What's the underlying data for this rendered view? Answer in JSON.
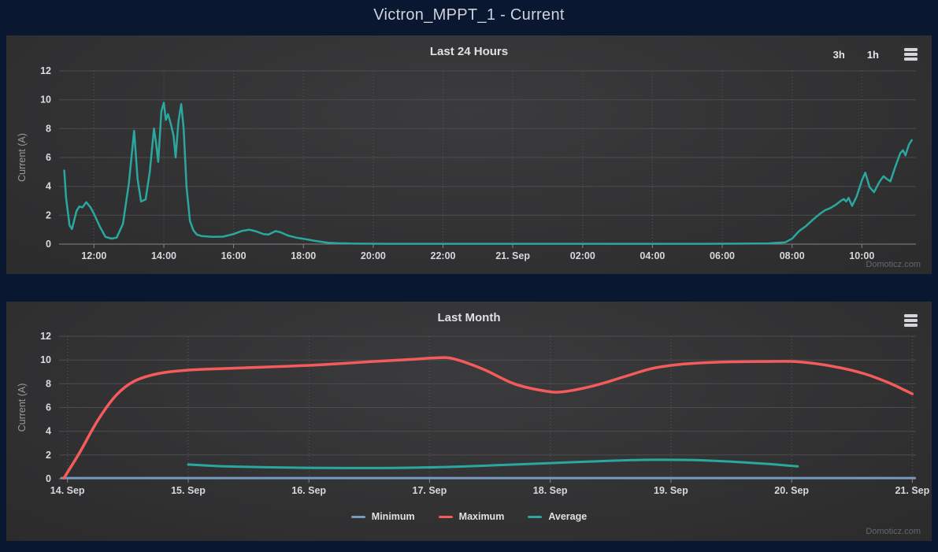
{
  "page": {
    "title": "Victron_MPPT_1 - Current",
    "watermark": "Domoticz.com"
  },
  "colors": {
    "page_bg": "#0a1731",
    "panel_center": "#3b3b3d",
    "panel_edge": "#2b2b2c",
    "grid": "#4d4d50",
    "minor_grid": "#58585c",
    "axis": "#85858a",
    "text": "#e0e0e3",
    "muted_text": "#9a9aa0",
    "teal": "#2aa79e",
    "red": "#f45b5b",
    "blue": "#7798bf"
  },
  "chart_data": [
    {
      "type": "line",
      "title": "Last 24 Hours",
      "ylabel": "Current (A)",
      "ylim": [
        0,
        12
      ],
      "yticks": [
        0,
        2,
        4,
        6,
        8,
        10,
        12
      ],
      "xlim": [
        11.0,
        35.55
      ],
      "x_unit": "hours (fractional, 24+ = next day 21. Sep)",
      "grid": true,
      "legend_position": "none",
      "range_buttons": [
        "3h",
        "1h"
      ],
      "xticks": [
        {
          "pos": 12,
          "label": "12:00"
        },
        {
          "pos": 14,
          "label": "14:00"
        },
        {
          "pos": 16,
          "label": "16:00"
        },
        {
          "pos": 18,
          "label": "18:00"
        },
        {
          "pos": 20,
          "label": "20:00"
        },
        {
          "pos": 22,
          "label": "22:00"
        },
        {
          "pos": 24,
          "label": "21. Sep"
        },
        {
          "pos": 26,
          "label": "02:00"
        },
        {
          "pos": 28,
          "label": "04:00"
        },
        {
          "pos": 30,
          "label": "06:00"
        },
        {
          "pos": 32,
          "label": "08:00"
        },
        {
          "pos": 34,
          "label": "10:00"
        }
      ],
      "series": [
        {
          "name": "Current",
          "color": "#2aa79e",
          "width": 2.5,
          "smooth": false,
          "points": [
            [
              11.15,
              5.1
            ],
            [
              11.2,
              3.2
            ],
            [
              11.3,
              1.3
            ],
            [
              11.37,
              1.05
            ],
            [
              11.5,
              2.3
            ],
            [
              11.58,
              2.6
            ],
            [
              11.67,
              2.55
            ],
            [
              11.78,
              2.9
            ],
            [
              11.9,
              2.55
            ],
            [
              12.0,
              2.1
            ],
            [
              12.17,
              1.2
            ],
            [
              12.33,
              0.5
            ],
            [
              12.5,
              0.38
            ],
            [
              12.65,
              0.45
            ],
            [
              12.83,
              1.4
            ],
            [
              13.0,
              4.2
            ],
            [
              13.15,
              7.85
            ],
            [
              13.25,
              4.5
            ],
            [
              13.35,
              2.95
            ],
            [
              13.48,
              3.1
            ],
            [
              13.6,
              5.0
            ],
            [
              13.72,
              8.0
            ],
            [
              13.78,
              7.0
            ],
            [
              13.84,
              5.7
            ],
            [
              13.93,
              9.2
            ],
            [
              14.0,
              9.8
            ],
            [
              14.06,
              8.6
            ],
            [
              14.12,
              9.0
            ],
            [
              14.2,
              8.35
            ],
            [
              14.28,
              7.5
            ],
            [
              14.34,
              6.0
            ],
            [
              14.42,
              8.5
            ],
            [
              14.5,
              9.7
            ],
            [
              14.57,
              8.0
            ],
            [
              14.65,
              4.0
            ],
            [
              14.75,
              1.6
            ],
            [
              14.85,
              0.95
            ],
            [
              14.95,
              0.65
            ],
            [
              15.1,
              0.55
            ],
            [
              15.4,
              0.5
            ],
            [
              15.7,
              0.52
            ],
            [
              16.0,
              0.7
            ],
            [
              16.25,
              0.92
            ],
            [
              16.45,
              1.0
            ],
            [
              16.65,
              0.88
            ],
            [
              16.85,
              0.7
            ],
            [
              17.0,
              0.66
            ],
            [
              17.2,
              0.9
            ],
            [
              17.35,
              0.82
            ],
            [
              17.55,
              0.6
            ],
            [
              17.8,
              0.45
            ],
            [
              18.05,
              0.35
            ],
            [
              18.35,
              0.22
            ],
            [
              18.7,
              0.1
            ],
            [
              19.0,
              0.06
            ],
            [
              19.5,
              0.03
            ],
            [
              20.5,
              0.02
            ],
            [
              22,
              0.02
            ],
            [
              24,
              0.02
            ],
            [
              26,
              0.02
            ],
            [
              28,
              0.02
            ],
            [
              29.5,
              0.02
            ],
            [
              30.5,
              0.03
            ],
            [
              31.3,
              0.05
            ],
            [
              31.8,
              0.12
            ],
            [
              32.0,
              0.37
            ],
            [
              32.2,
              0.9
            ],
            [
              32.4,
              1.25
            ],
            [
              32.6,
              1.7
            ],
            [
              32.8,
              2.1
            ],
            [
              32.95,
              2.35
            ],
            [
              33.1,
              2.5
            ],
            [
              33.25,
              2.72
            ],
            [
              33.4,
              3.0
            ],
            [
              33.48,
              3.12
            ],
            [
              33.55,
              2.95
            ],
            [
              33.62,
              3.2
            ],
            [
              33.72,
              2.65
            ],
            [
              33.85,
              3.3
            ],
            [
              34.0,
              4.4
            ],
            [
              34.1,
              4.95
            ],
            [
              34.22,
              3.95
            ],
            [
              34.35,
              3.6
            ],
            [
              34.5,
              4.3
            ],
            [
              34.62,
              4.7
            ],
            [
              34.72,
              4.5
            ],
            [
              34.82,
              4.35
            ],
            [
              34.95,
              5.3
            ],
            [
              35.1,
              6.3
            ],
            [
              35.18,
              6.5
            ],
            [
              35.25,
              6.15
            ],
            [
              35.35,
              6.9
            ],
            [
              35.43,
              7.2
            ]
          ]
        }
      ]
    },
    {
      "type": "line",
      "title": "Last Month",
      "ylabel": "Current (A)",
      "ylim": [
        0,
        12
      ],
      "yticks": [
        0,
        2,
        4,
        6,
        8,
        10,
        12
      ],
      "xlim": [
        13.93,
        21.03
      ],
      "x_unit": "day of September",
      "grid": true,
      "legend_position": "bottom",
      "range_buttons": [],
      "xticks": [
        {
          "pos": 14,
          "label": "14. Sep"
        },
        {
          "pos": 15,
          "label": "15. Sep"
        },
        {
          "pos": 16,
          "label": "16. Sep"
        },
        {
          "pos": 17,
          "label": "17. Sep"
        },
        {
          "pos": 18,
          "label": "18. Sep"
        },
        {
          "pos": 19,
          "label": "19. Sep"
        },
        {
          "pos": 20,
          "label": "20. Sep"
        },
        {
          "pos": 21,
          "label": "21. Sep"
        }
      ],
      "series": [
        {
          "name": "Minimum",
          "color": "#7798bf",
          "width": 3,
          "smooth": false,
          "points": [
            [
              13.95,
              0.06
            ],
            [
              21.02,
              0.06
            ]
          ]
        },
        {
          "name": "Maximum",
          "color": "#f45b5b",
          "width": 3.5,
          "smooth": true,
          "points": [
            [
              13.97,
              0.05
            ],
            [
              14.1,
              2.2
            ],
            [
              14.25,
              4.9
            ],
            [
              14.4,
              7.0
            ],
            [
              14.55,
              8.2
            ],
            [
              14.75,
              8.85
            ],
            [
              15.0,
              9.15
            ],
            [
              15.35,
              9.3
            ],
            [
              15.75,
              9.45
            ],
            [
              16.1,
              9.6
            ],
            [
              16.5,
              9.85
            ],
            [
              16.85,
              10.05
            ],
            [
              17.05,
              10.18
            ],
            [
              17.2,
              10.1
            ],
            [
              17.45,
              9.2
            ],
            [
              17.7,
              8.0
            ],
            [
              17.95,
              7.4
            ],
            [
              18.1,
              7.32
            ],
            [
              18.35,
              7.8
            ],
            [
              18.6,
              8.55
            ],
            [
              18.85,
              9.3
            ],
            [
              19.1,
              9.65
            ],
            [
              19.4,
              9.82
            ],
            [
              19.75,
              9.87
            ],
            [
              20.05,
              9.85
            ],
            [
              20.35,
              9.45
            ],
            [
              20.6,
              8.85
            ],
            [
              20.8,
              8.1
            ],
            [
              21.0,
              7.15
            ]
          ]
        },
        {
          "name": "Average",
          "color": "#2aa79e",
          "width": 3,
          "smooth": true,
          "points": [
            [
              15.0,
              1.2
            ],
            [
              15.3,
              1.05
            ],
            [
              15.65,
              0.97
            ],
            [
              16.0,
              0.92
            ],
            [
              16.5,
              0.9
            ],
            [
              17.0,
              0.96
            ],
            [
              17.5,
              1.12
            ],
            [
              18.0,
              1.32
            ],
            [
              18.5,
              1.52
            ],
            [
              18.85,
              1.6
            ],
            [
              19.2,
              1.57
            ],
            [
              19.5,
              1.44
            ],
            [
              19.8,
              1.25
            ],
            [
              20.05,
              1.05
            ]
          ]
        }
      ]
    }
  ]
}
